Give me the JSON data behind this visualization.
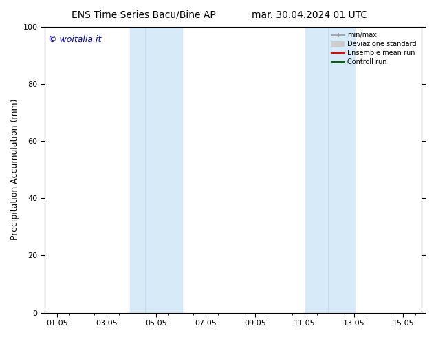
{
  "title_left": "ENS Time Series Bacu/Bine AP",
  "title_right": "mar. 30.04.2024 01 UTC",
  "ylabel": "Precipitation Accumulation (mm)",
  "ylim": [
    0,
    100
  ],
  "xtick_labels": [
    "01.05",
    "03.05",
    "05.05",
    "07.05",
    "09.05",
    "11.05",
    "13.05",
    "15.05"
  ],
  "xtick_positions": [
    1,
    3,
    5,
    7,
    9,
    11,
    13,
    15
  ],
  "shaded_bands": [
    {
      "x_start": 3.95,
      "x_end": 4.55,
      "color": "#ddeeff"
    },
    {
      "x_start": 4.55,
      "x_end": 6.05,
      "color": "#ddeeff"
    },
    {
      "x_start": 11.05,
      "x_end": 11.95,
      "color": "#ddeeff"
    },
    {
      "x_start": 11.95,
      "x_end": 13.05,
      "color": "#ddeeff"
    }
  ],
  "shade_color": "#d6eaf8",
  "shade_alpha": 1.0,
  "watermark_text": "© woitalia.it",
  "watermark_color": "#0000cc",
  "watermark_fontsize": 9,
  "legend_entries": [
    {
      "label": "min/max",
      "color": "#999999",
      "linewidth": 1.2,
      "linestyle": "-"
    },
    {
      "label": "Deviazione standard",
      "color": "#cccccc",
      "linewidth": 5,
      "linestyle": "-"
    },
    {
      "label": "Ensemble mean run",
      "color": "#ff0000",
      "linewidth": 1.5,
      "linestyle": "-"
    },
    {
      "label": "Controll run",
      "color": "#006600",
      "linewidth": 1.5,
      "linestyle": "-"
    }
  ],
  "bg_color": "#ffffff",
  "title_fontsize": 10,
  "ylabel_fontsize": 9,
  "tick_fontsize": 8,
  "legend_fontsize": 7,
  "xlim": [
    0.5,
    15.75
  ]
}
